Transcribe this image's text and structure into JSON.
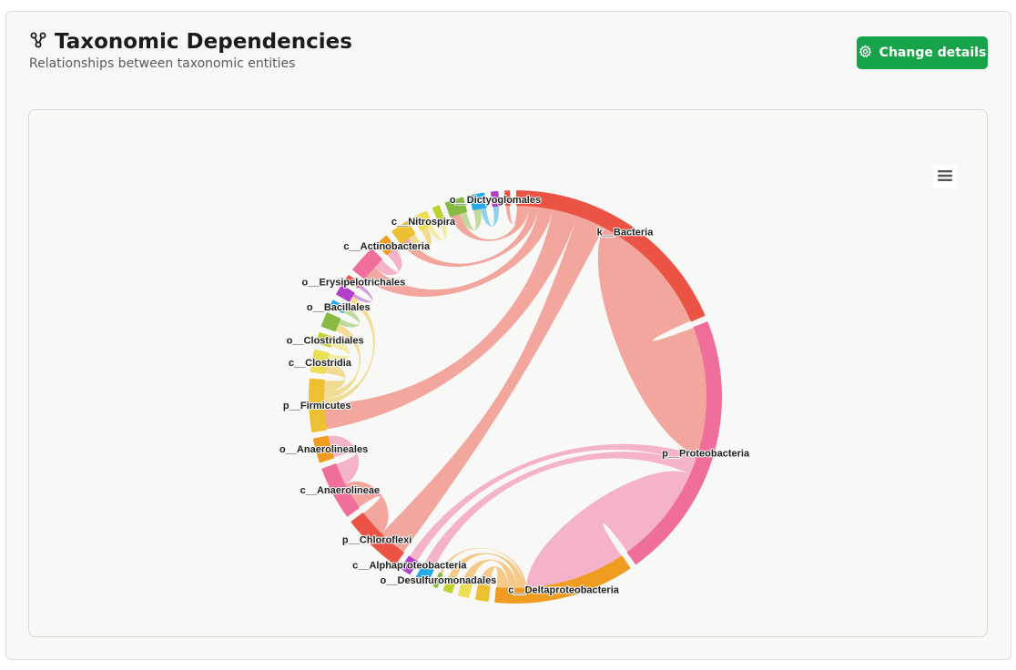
{
  "header": {
    "title": "Taxonomic Dependencies",
    "subtitle": "Relationships between taxonomic entities",
    "change_details_label": "Change details",
    "title_icon": "hierarchy-icon",
    "button_icon": "gear-icon"
  },
  "chart_menu_icon": "hamburger-menu-icon",
  "colors": {
    "brand_green": "#17a34a"
  },
  "chart_data": {
    "type": "dependency-wheel",
    "nodes": [
      {
        "label": "k__Bacteria",
        "color": "#eb5444"
      },
      {
        "label": "p__Proteobacteria",
        "color": "#f06e9c"
      },
      {
        "label": "c__Deltaproteobacteria",
        "color": "#f09c20"
      },
      {
        "label": "",
        "color": "#ecc030"
      },
      {
        "label": "",
        "color": "#ecdf55"
      },
      {
        "label": "",
        "color": "#c2d030"
      },
      {
        "label": "o__Desulfuromonadales",
        "color": "#88bb44"
      },
      {
        "label": "",
        "color": "#26aae8"
      },
      {
        "label": "c__Alphaproteobacteria",
        "color": "#b040c8"
      },
      {
        "label": "p__Chloroflexi",
        "color": "#eb5444"
      },
      {
        "label": "c__Anaerolineae",
        "color": "#f06e9c"
      },
      {
        "label": "o__Anaerolineales",
        "color": "#f09c20"
      },
      {
        "label": "p__Firmicutes",
        "color": "#ecc030"
      },
      {
        "label": "c__Clostridia",
        "color": "#ecdf55"
      },
      {
        "label": "o__Clostridiales",
        "color": "#c2d030"
      },
      {
        "label": "",
        "color": "#88bb44"
      },
      {
        "label": "o__Bacillales",
        "color": "#26aae8"
      },
      {
        "label": "",
        "color": "#b040c8"
      },
      {
        "label": "o__Erysipelotrichales",
        "color": "#eb5444"
      },
      {
        "label": "",
        "color": "#f06e9c"
      },
      {
        "label": "c__Actinobacteria",
        "color": "#f09c20"
      },
      {
        "label": "",
        "color": "#ecc030"
      },
      {
        "label": "c__Nitrospira",
        "color": "#ecdf55"
      },
      {
        "label": "",
        "color": "#c2d030"
      },
      {
        "label": "",
        "color": "#88bb44"
      },
      {
        "label": "",
        "color": "#26aae8"
      },
      {
        "label": "o__Dictyoglomales",
        "color": "#b040c8"
      },
      {
        "label": "",
        "color": "#eb5444"
      }
    ],
    "links": [
      [
        0,
        1,
        36
      ],
      [
        0,
        9,
        8
      ],
      [
        0,
        12,
        7
      ],
      [
        0,
        19,
        4
      ],
      [
        0,
        21,
        2.5
      ],
      [
        0,
        24,
        2.5
      ],
      [
        0,
        27,
        1
      ],
      [
        1,
        2,
        28
      ],
      [
        1,
        8,
        2.5
      ],
      [
        1,
        7,
        3
      ],
      [
        2,
        3,
        3
      ],
      [
        2,
        4,
        2.5
      ],
      [
        2,
        5,
        2
      ],
      [
        2,
        6,
        0.7
      ],
      [
        9,
        10,
        7.5
      ],
      [
        10,
        11,
        6
      ],
      [
        12,
        13,
        3
      ],
      [
        12,
        15,
        2
      ],
      [
        12,
        17,
        1.5
      ],
      [
        13,
        14,
        2.5
      ],
      [
        15,
        16,
        1.5
      ],
      [
        17,
        18,
        1
      ],
      [
        19,
        20,
        3
      ],
      [
        21,
        22,
        2
      ],
      [
        22,
        23,
        1.5
      ],
      [
        24,
        25,
        2
      ],
      [
        25,
        26,
        1.5
      ]
    ]
  }
}
